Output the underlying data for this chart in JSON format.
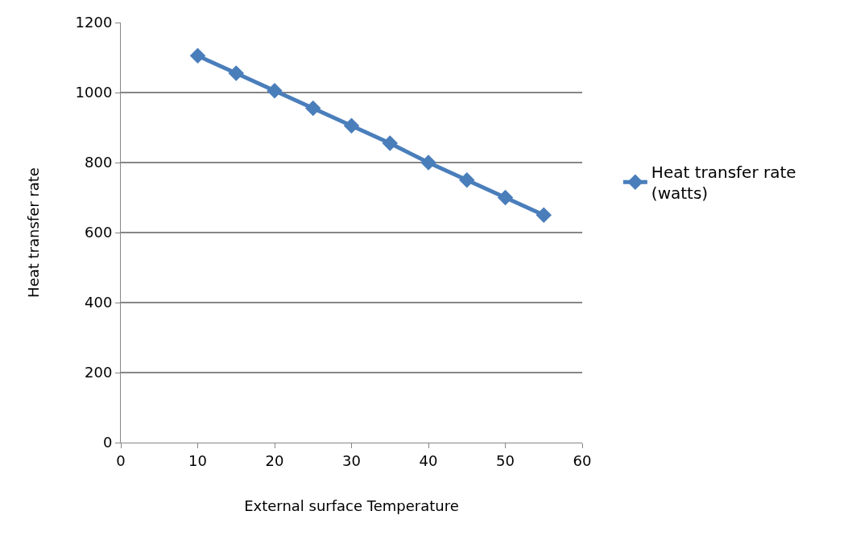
{
  "chart_data": {
    "type": "line",
    "xlabel": "External surface Temperature",
    "ylabel": "Heat transfer rate",
    "x": [
      10,
      15,
      20,
      25,
      30,
      35,
      40,
      45,
      50,
      55
    ],
    "series": [
      {
        "name": "Heat transfer rate (watts)",
        "color": "#4a7ebb",
        "values": [
          1105,
          1055,
          1005,
          955,
          905,
          855,
          800,
          750,
          700,
          650
        ]
      }
    ],
    "xlim": [
      0,
      60
    ],
    "xticks": [
      0,
      10,
      20,
      30,
      40,
      50,
      60
    ],
    "ylim": [
      0,
      1200
    ],
    "yticks": [
      0,
      200,
      400,
      600,
      800,
      1000,
      1200
    ],
    "grid": "y",
    "legend": "right",
    "marker": "diamond",
    "line_style": "solid"
  }
}
